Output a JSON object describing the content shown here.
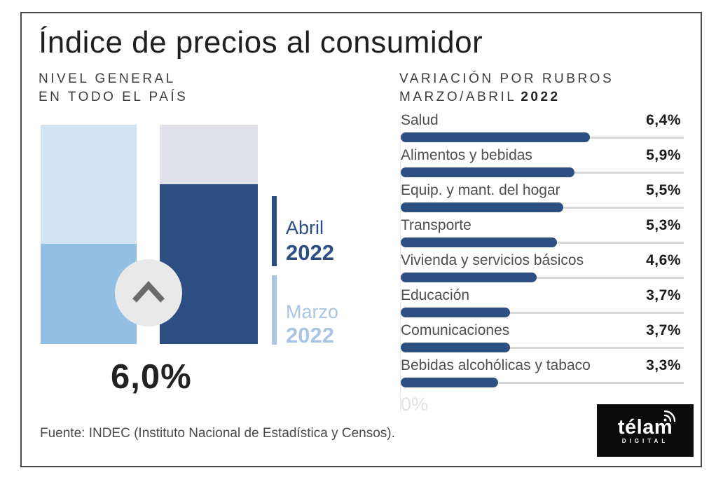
{
  "title": "Índice de precios al consumidor",
  "left_panel": {
    "subtitle_line1": "NIVEL GENERAL",
    "subtitle_line2": "EN TODO EL PAÍS",
    "headline_value": "6,0%",
    "legend": [
      {
        "label": "Abril",
        "year": "2022",
        "color": "#2c4e82"
      },
      {
        "label": "Marzo",
        "year": "2022",
        "color": "#a9c6e5"
      }
    ]
  },
  "right_panel": {
    "subtitle_line1": "VARIACIÓN POR RUBROS",
    "subtitle_line2": "MARZO/ABRIL",
    "subtitle_year": "2022",
    "axis_zero_label": "0%"
  },
  "chart_data": [
    {
      "type": "bar",
      "title": "NIVEL GENERAL EN TODO EL PAÍS",
      "categories": [
        "Marzo 2022",
        "Abril 2022"
      ],
      "values": [
        null,
        6.0
      ],
      "value_labels": [
        "",
        "6,0%"
      ],
      "legend_position": "right"
    },
    {
      "type": "bar",
      "orientation": "horizontal",
      "title": "VARIACIÓN POR RUBROS MARZO/ABRIL 2022",
      "categories": [
        "Salud",
        "Alimentos y bebidas",
        "Equip. y mant. del hogar",
        "Transporte",
        "Vivienda y servicios básicos",
        "Educación",
        "Comunicaciones",
        "Bebidas alcohólicas y tabaco"
      ],
      "values": [
        6.4,
        5.9,
        5.5,
        5.3,
        4.6,
        3.7,
        3.7,
        3.3
      ],
      "value_labels": [
        "6,4%",
        "5,9%",
        "5,5%",
        "5,3%",
        "4,6%",
        "3,7%",
        "3,7%",
        "3,3%"
      ],
      "xlabel": "",
      "xlim": [
        0,
        9.5
      ],
      "grid": false
    }
  ],
  "footer": {
    "source": "Fuente: INDEC (Instituto Nacional de Estadística y Censos)."
  },
  "logo": {
    "brand": "télam",
    "sub": "DIGITAL"
  },
  "colors": {
    "dark_blue": "#2c4e82",
    "medium_blue": "#92bfe2",
    "pale_blue": "#d3e3f2",
    "pale_lavender": "#dfe0ea",
    "light_blue": "#a9c6e5",
    "bar_fill": "#2e4f81",
    "track_gray": "#d9d9d9",
    "frame_gray": "#4a4a4a",
    "text_dark": "#1f1f1f"
  }
}
